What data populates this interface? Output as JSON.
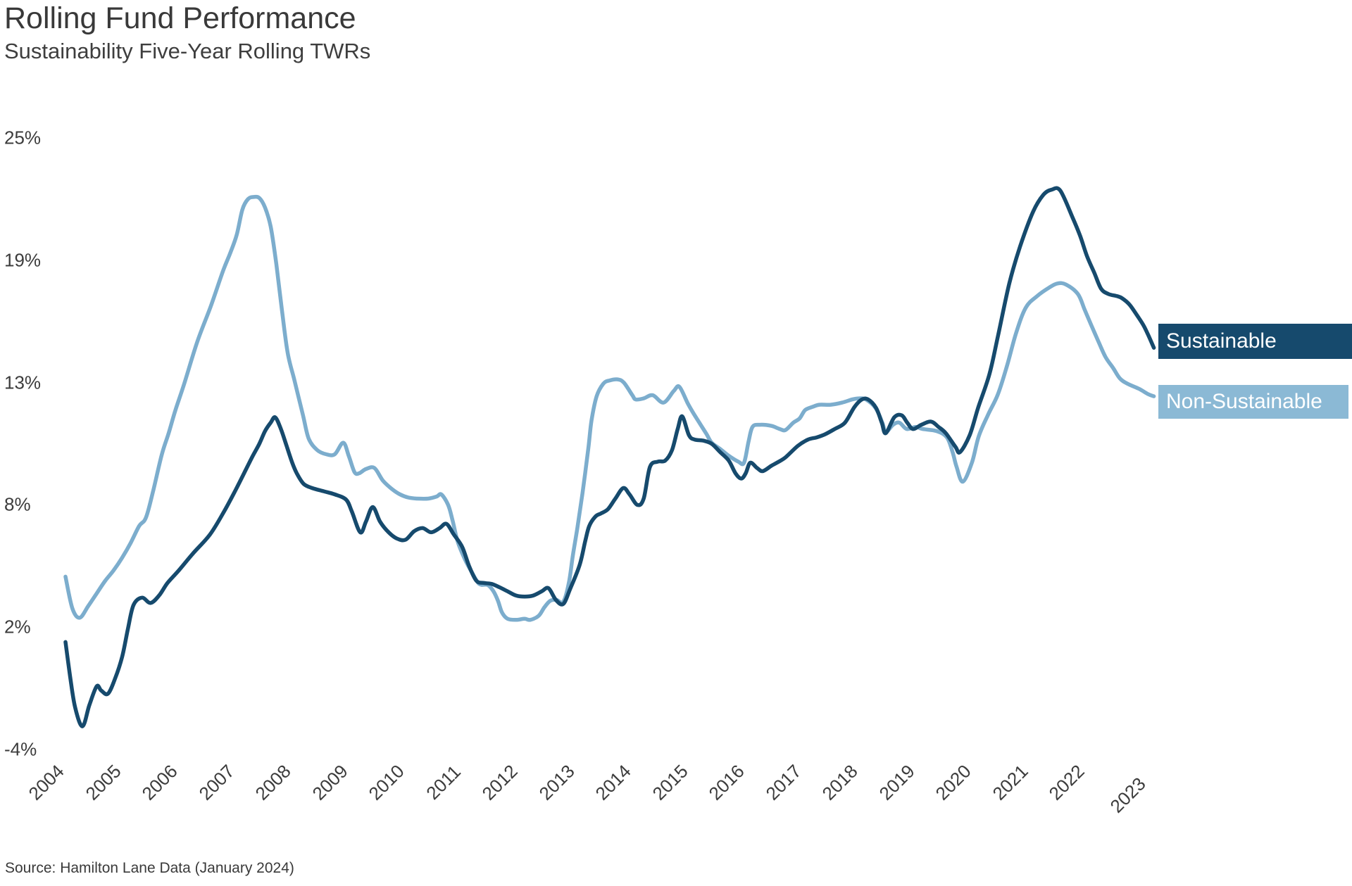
{
  "chart_data": {
    "type": "line",
    "title": "Rolling Fund Performance",
    "subtitle": "Sustainability Five-Year Rolling TWRs",
    "source_note": "Source: Hamilton Lane Data (January 2024)",
    "grid": false,
    "legend": {
      "position": "right",
      "style": "filled-label-boxes",
      "text_color": "#ffffff"
    },
    "x_axis": {
      "range": [
        2004,
        2023.2
      ],
      "label_rotation_deg": -45,
      "ticks": [
        "2004",
        "2005",
        "2006",
        "2007",
        "2008",
        "2009",
        "2010",
        "2011",
        "2012",
        "2013",
        "2014",
        "2015",
        "2016",
        "2017",
        "2018",
        "2019",
        "2020",
        "2021",
        "2022",
        "2023"
      ]
    },
    "y_axis": {
      "unit": "%",
      "range": [
        -4,
        25
      ],
      "ticks": [
        {
          "value": 25,
          "label": "25%"
        },
        {
          "value": 19.2,
          "label": "19%"
        },
        {
          "value": 13.4,
          "label": "13%"
        },
        {
          "value": 7.6,
          "label": "8%"
        },
        {
          "value": 1.8,
          "label": "2%"
        },
        {
          "value": -4,
          "label": "-4%"
        }
      ]
    },
    "series": [
      {
        "name": "Non-Sustainable",
        "color": "#7cadcd",
        "legend_bg": "#8bb9d5",
        "points": [
          [
            2004.0,
            4.2
          ],
          [
            2004.12,
            2.7
          ],
          [
            2004.25,
            2.25
          ],
          [
            2004.4,
            2.8
          ],
          [
            2004.55,
            3.4
          ],
          [
            2004.7,
            4.0
          ],
          [
            2004.85,
            4.5
          ],
          [
            2005.0,
            5.1
          ],
          [
            2005.15,
            5.8
          ],
          [
            2005.3,
            6.6
          ],
          [
            2005.42,
            7.0
          ],
          [
            2005.55,
            8.3
          ],
          [
            2005.7,
            10.0
          ],
          [
            2005.82,
            11.0
          ],
          [
            2005.94,
            12.1
          ],
          [
            2006.09,
            13.3
          ],
          [
            2006.32,
            15.3
          ],
          [
            2006.56,
            17.0
          ],
          [
            2006.78,
            18.7
          ],
          [
            2006.9,
            19.5
          ],
          [
            2007.02,
            20.4
          ],
          [
            2007.12,
            21.6
          ],
          [
            2007.22,
            22.1
          ],
          [
            2007.32,
            22.2
          ],
          [
            2007.42,
            22.15
          ],
          [
            2007.52,
            21.7
          ],
          [
            2007.62,
            20.8
          ],
          [
            2007.72,
            19.0
          ],
          [
            2007.82,
            16.8
          ],
          [
            2007.92,
            14.8
          ],
          [
            2008.04,
            13.5
          ],
          [
            2008.19,
            11.85
          ],
          [
            2008.29,
            10.75
          ],
          [
            2008.44,
            10.2
          ],
          [
            2008.6,
            10.0
          ],
          [
            2008.75,
            10.0
          ],
          [
            2008.9,
            10.55
          ],
          [
            2009.0,
            9.9
          ],
          [
            2009.1,
            9.15
          ],
          [
            2009.18,
            9.1
          ],
          [
            2009.3,
            9.3
          ],
          [
            2009.45,
            9.35
          ],
          [
            2009.6,
            8.75
          ],
          [
            2009.76,
            8.35
          ],
          [
            2009.9,
            8.1
          ],
          [
            2010.05,
            7.95
          ],
          [
            2010.2,
            7.9
          ],
          [
            2010.4,
            7.9
          ],
          [
            2010.55,
            8.0
          ],
          [
            2010.63,
            8.1
          ],
          [
            2010.75,
            7.6
          ],
          [
            2010.83,
            6.85
          ],
          [
            2010.92,
            5.85
          ],
          [
            2011.05,
            5.0
          ],
          [
            2011.17,
            4.4
          ],
          [
            2011.3,
            3.85
          ],
          [
            2011.45,
            3.8
          ],
          [
            2011.55,
            3.5
          ],
          [
            2011.63,
            3.05
          ],
          [
            2011.7,
            2.5
          ],
          [
            2011.8,
            2.2
          ],
          [
            2011.95,
            2.15
          ],
          [
            2012.1,
            2.2
          ],
          [
            2012.2,
            2.15
          ],
          [
            2012.35,
            2.35
          ],
          [
            2012.45,
            2.75
          ],
          [
            2012.55,
            3.05
          ],
          [
            2012.66,
            3.1
          ],
          [
            2012.78,
            3.0
          ],
          [
            2012.88,
            3.9
          ],
          [
            2012.95,
            5.2
          ],
          [
            2013.03,
            6.5
          ],
          [
            2013.12,
            8.15
          ],
          [
            2013.22,
            10.2
          ],
          [
            2013.28,
            11.6
          ],
          [
            2013.37,
            12.75
          ],
          [
            2013.49,
            13.35
          ],
          [
            2013.6,
            13.5
          ],
          [
            2013.74,
            13.55
          ],
          [
            2013.85,
            13.4
          ],
          [
            2014.0,
            12.8
          ],
          [
            2014.06,
            12.6
          ],
          [
            2014.2,
            12.65
          ],
          [
            2014.36,
            12.8
          ],
          [
            2014.55,
            12.45
          ],
          [
            2014.73,
            13.0
          ],
          [
            2014.83,
            13.2
          ],
          [
            2014.98,
            12.4
          ],
          [
            2015.1,
            11.85
          ],
          [
            2015.3,
            11.0
          ],
          [
            2015.4,
            10.55
          ],
          [
            2015.55,
            10.25
          ],
          [
            2015.69,
            9.95
          ],
          [
            2015.87,
            9.65
          ],
          [
            2015.97,
            9.6
          ],
          [
            2016.05,
            10.6
          ],
          [
            2016.12,
            11.3
          ],
          [
            2016.25,
            11.4
          ],
          [
            2016.45,
            11.35
          ],
          [
            2016.6,
            11.2
          ],
          [
            2016.7,
            11.15
          ],
          [
            2016.84,
            11.5
          ],
          [
            2016.95,
            11.7
          ],
          [
            2017.05,
            12.1
          ],
          [
            2017.18,
            12.25
          ],
          [
            2017.3,
            12.35
          ],
          [
            2017.5,
            12.35
          ],
          [
            2017.7,
            12.45
          ],
          [
            2017.88,
            12.6
          ],
          [
            2018.0,
            12.65
          ],
          [
            2018.12,
            12.6
          ],
          [
            2018.29,
            12.2
          ],
          [
            2018.41,
            11.5
          ],
          [
            2018.47,
            11.05
          ],
          [
            2018.6,
            11.4
          ],
          [
            2018.71,
            11.5
          ],
          [
            2018.84,
            11.2
          ],
          [
            2019.0,
            11.3
          ],
          [
            2019.12,
            11.2
          ],
          [
            2019.37,
            11.1
          ],
          [
            2019.55,
            10.8
          ],
          [
            2019.65,
            10.1
          ],
          [
            2019.72,
            9.4
          ],
          [
            2019.83,
            8.7
          ],
          [
            2019.99,
            9.6
          ],
          [
            2020.11,
            10.85
          ],
          [
            2020.28,
            11.9
          ],
          [
            2020.45,
            12.85
          ],
          [
            2020.61,
            14.2
          ],
          [
            2020.77,
            15.75
          ],
          [
            2020.94,
            16.95
          ],
          [
            2021.14,
            17.5
          ],
          [
            2021.35,
            17.9
          ],
          [
            2021.5,
            18.1
          ],
          [
            2021.65,
            18.05
          ],
          [
            2021.86,
            17.6
          ],
          [
            2021.98,
            16.85
          ],
          [
            2022.1,
            16.1
          ],
          [
            2022.23,
            15.3
          ],
          [
            2022.35,
            14.6
          ],
          [
            2022.48,
            14.1
          ],
          [
            2022.6,
            13.6
          ],
          [
            2022.73,
            13.35
          ],
          [
            2022.94,
            13.1
          ],
          [
            2023.1,
            12.85
          ],
          [
            2023.2,
            12.75
          ]
        ]
      },
      {
        "name": "Sustainable",
        "color": "#164a6d",
        "legend_bg": "#164a6d",
        "points": [
          [
            2004.0,
            1.1
          ],
          [
            2004.08,
            -0.5
          ],
          [
            2004.17,
            -2.0
          ],
          [
            2004.3,
            -2.9
          ],
          [
            2004.42,
            -1.9
          ],
          [
            2004.55,
            -1.0
          ],
          [
            2004.63,
            -1.2
          ],
          [
            2004.75,
            -1.35
          ],
          [
            2004.88,
            -0.6
          ],
          [
            2005.0,
            0.4
          ],
          [
            2005.1,
            1.7
          ],
          [
            2005.2,
            2.85
          ],
          [
            2005.35,
            3.2
          ],
          [
            2005.5,
            2.95
          ],
          [
            2005.65,
            3.3
          ],
          [
            2005.8,
            3.9
          ],
          [
            2006.0,
            4.5
          ],
          [
            2006.25,
            5.3
          ],
          [
            2006.55,
            6.2
          ],
          [
            2006.8,
            7.3
          ],
          [
            2007.0,
            8.3
          ],
          [
            2007.15,
            9.1
          ],
          [
            2007.3,
            9.9
          ],
          [
            2007.42,
            10.5
          ],
          [
            2007.52,
            11.1
          ],
          [
            2007.62,
            11.5
          ],
          [
            2007.7,
            11.75
          ],
          [
            2007.8,
            11.2
          ],
          [
            2007.9,
            10.4
          ],
          [
            2008.0,
            9.6
          ],
          [
            2008.08,
            9.1
          ],
          [
            2008.2,
            8.6
          ],
          [
            2008.35,
            8.4
          ],
          [
            2008.55,
            8.25
          ],
          [
            2008.75,
            8.1
          ],
          [
            2008.95,
            7.85
          ],
          [
            2009.05,
            7.3
          ],
          [
            2009.2,
            6.3
          ],
          [
            2009.3,
            6.8
          ],
          [
            2009.42,
            7.5
          ],
          [
            2009.55,
            6.8
          ],
          [
            2009.7,
            6.3
          ],
          [
            2009.85,
            6.0
          ],
          [
            2010.0,
            5.95
          ],
          [
            2010.15,
            6.35
          ],
          [
            2010.3,
            6.5
          ],
          [
            2010.45,
            6.3
          ],
          [
            2010.6,
            6.5
          ],
          [
            2010.72,
            6.7
          ],
          [
            2010.85,
            6.2
          ],
          [
            2011.0,
            5.6
          ],
          [
            2011.12,
            4.7
          ],
          [
            2011.25,
            4.0
          ],
          [
            2011.38,
            3.9
          ],
          [
            2011.52,
            3.85
          ],
          [
            2011.65,
            3.7
          ],
          [
            2011.8,
            3.5
          ],
          [
            2011.95,
            3.3
          ],
          [
            2012.1,
            3.25
          ],
          [
            2012.25,
            3.3
          ],
          [
            2012.4,
            3.5
          ],
          [
            2012.52,
            3.65
          ],
          [
            2012.65,
            3.1
          ],
          [
            2012.78,
            2.9
          ],
          [
            2012.9,
            3.6
          ],
          [
            2013.07,
            4.75
          ],
          [
            2013.17,
            5.9
          ],
          [
            2013.24,
            6.6
          ],
          [
            2013.35,
            7.05
          ],
          [
            2013.45,
            7.2
          ],
          [
            2013.57,
            7.4
          ],
          [
            2013.7,
            7.9
          ],
          [
            2013.84,
            8.4
          ],
          [
            2013.95,
            8.1
          ],
          [
            2014.09,
            7.6
          ],
          [
            2014.2,
            7.9
          ],
          [
            2014.31,
            9.4
          ],
          [
            2014.45,
            9.65
          ],
          [
            2014.58,
            9.7
          ],
          [
            2014.7,
            10.2
          ],
          [
            2014.8,
            11.2
          ],
          [
            2014.88,
            11.8
          ],
          [
            2015.0,
            10.9
          ],
          [
            2015.1,
            10.7
          ],
          [
            2015.25,
            10.65
          ],
          [
            2015.4,
            10.5
          ],
          [
            2015.55,
            10.1
          ],
          [
            2015.7,
            9.7
          ],
          [
            2015.82,
            9.1
          ],
          [
            2015.92,
            8.85
          ],
          [
            2016.0,
            9.1
          ],
          [
            2016.08,
            9.6
          ],
          [
            2016.2,
            9.35
          ],
          [
            2016.3,
            9.2
          ],
          [
            2016.45,
            9.45
          ],
          [
            2016.55,
            9.6
          ],
          [
            2016.7,
            9.85
          ],
          [
            2016.92,
            10.4
          ],
          [
            2017.1,
            10.7
          ],
          [
            2017.25,
            10.8
          ],
          [
            2017.4,
            10.95
          ],
          [
            2017.57,
            11.2
          ],
          [
            2017.75,
            11.5
          ],
          [
            2017.92,
            12.25
          ],
          [
            2018.05,
            12.6
          ],
          [
            2018.16,
            12.6
          ],
          [
            2018.3,
            12.2
          ],
          [
            2018.4,
            11.5
          ],
          [
            2018.47,
            11.0
          ],
          [
            2018.62,
            11.75
          ],
          [
            2018.75,
            11.85
          ],
          [
            2018.85,
            11.5
          ],
          [
            2018.95,
            11.2
          ],
          [
            2019.1,
            11.4
          ],
          [
            2019.27,
            11.55
          ],
          [
            2019.4,
            11.3
          ],
          [
            2019.53,
            11.0
          ],
          [
            2019.7,
            10.35
          ],
          [
            2019.78,
            10.1
          ],
          [
            2019.95,
            10.9
          ],
          [
            2020.1,
            12.2
          ],
          [
            2020.3,
            13.8
          ],
          [
            2020.45,
            15.6
          ],
          [
            2020.65,
            18.1
          ],
          [
            2020.84,
            19.85
          ],
          [
            2021.07,
            21.5
          ],
          [
            2021.25,
            22.3
          ],
          [
            2021.4,
            22.55
          ],
          [
            2021.55,
            22.5
          ],
          [
            2021.77,
            21.2
          ],
          [
            2021.9,
            20.35
          ],
          [
            2022.02,
            19.4
          ],
          [
            2022.15,
            18.6
          ],
          [
            2022.27,
            17.85
          ],
          [
            2022.4,
            17.6
          ],
          [
            2022.55,
            17.5
          ],
          [
            2022.64,
            17.4
          ],
          [
            2022.77,
            17.1
          ],
          [
            2022.9,
            16.6
          ],
          [
            2023.02,
            16.1
          ],
          [
            2023.11,
            15.6
          ],
          [
            2023.2,
            15.05
          ]
        ]
      }
    ]
  }
}
